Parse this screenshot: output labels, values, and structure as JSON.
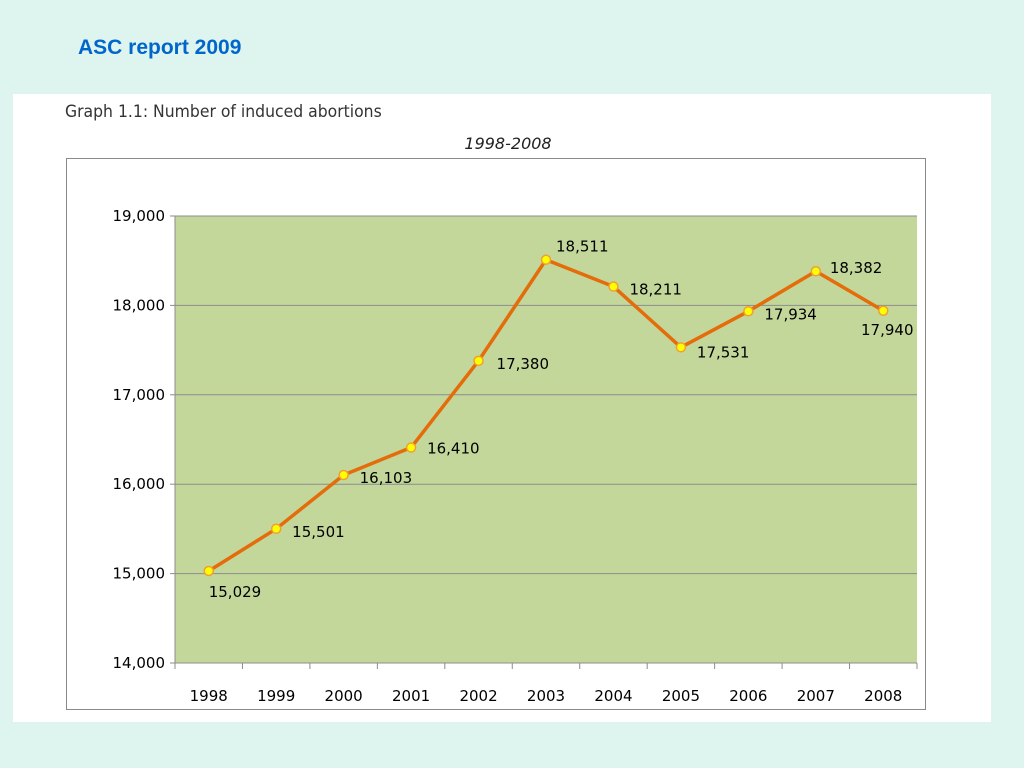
{
  "slide": {
    "title": "ASC report 2009"
  },
  "figure": {
    "caption": "Graph 1.1: Number of induced abortions",
    "subtitle": "1998-2008"
  },
  "colors": {
    "background": "#def4ee",
    "title": "#0066cc",
    "plot_area": "#c4d79b",
    "line": "#e46c0a",
    "marker_fill": "#ffff00",
    "marker_stroke": "#f0a030"
  },
  "chart_data": {
    "type": "line",
    "title": "1998-2008",
    "xlabel": "",
    "ylabel": "",
    "categories": [
      "1998",
      "1999",
      "2000",
      "2001",
      "2002",
      "2003",
      "2004",
      "2005",
      "2006",
      "2007",
      "2008"
    ],
    "series": [
      {
        "values": [
          15029,
          15501,
          16103,
          16410,
          17380,
          18511,
          18211,
          17531,
          17934,
          18382,
          17940
        ],
        "data_labels": [
          "15,029",
          "15,501",
          "16,103",
          "16,410",
          "17,380",
          "18,511",
          "18,211",
          "17,531",
          "17,934",
          "18,382",
          "17,940"
        ]
      }
    ],
    "ylim": [
      14000,
      19000
    ],
    "y_ticks": [
      14000,
      15000,
      16000,
      17000,
      18000,
      19000
    ],
    "y_tick_labels": [
      "14,000",
      "15,000",
      "16,000",
      "17,000",
      "18,000",
      "19,000"
    ],
    "grid": "horizontal",
    "legend": "none"
  }
}
